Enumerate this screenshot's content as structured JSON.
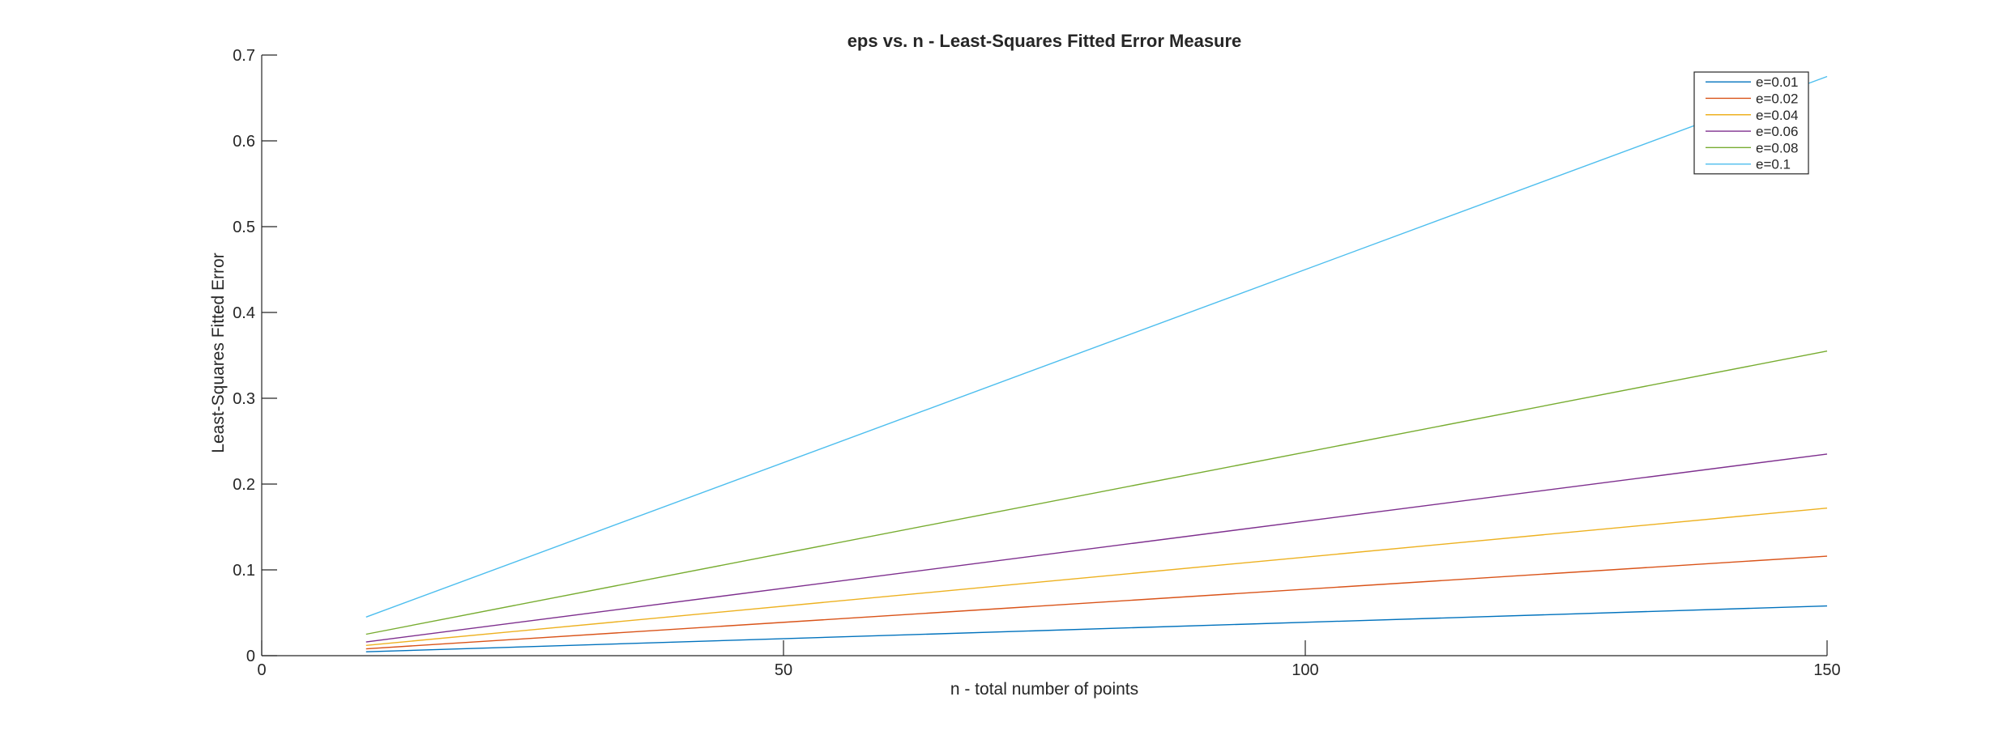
{
  "chart_data": {
    "type": "line",
    "title": "eps vs. n - Least-Squares Fitted Error Measure",
    "xlabel": "n - total number of points",
    "ylabel": "Least-Squares Fitted Error",
    "xlim": [
      0,
      150
    ],
    "ylim": [
      0,
      0.7
    ],
    "xticks": [
      0,
      50,
      100,
      150
    ],
    "xtick_labels": [
      "0",
      "50",
      "100",
      "150"
    ],
    "yticks": [
      0,
      0.1,
      0.2,
      0.3,
      0.4,
      0.5,
      0.6,
      0.7
    ],
    "ytick_labels": [
      "0",
      "0.1",
      "0.2",
      "0.3",
      "0.4",
      "0.5",
      "0.6",
      "0.7"
    ],
    "grid": false,
    "legend_position": "top-right",
    "x": [
      10,
      150
    ],
    "series": [
      {
        "name": "e=0.01",
        "color": "#0072BD",
        "values": [
          0.0045,
          0.058
        ]
      },
      {
        "name": "e=0.02",
        "color": "#D95319",
        "values": [
          0.008,
          0.116
        ]
      },
      {
        "name": "e=0.04",
        "color": "#EDB120",
        "values": [
          0.012,
          0.172
        ]
      },
      {
        "name": "e=0.06",
        "color": "#7E2F8E",
        "values": [
          0.016,
          0.235
        ]
      },
      {
        "name": "e=0.08",
        "color": "#77AC30",
        "values": [
          0.025,
          0.355
        ]
      },
      {
        "name": "e=0.1",
        "color": "#4DBEEE",
        "values": [
          0.045,
          0.675
        ]
      }
    ]
  }
}
